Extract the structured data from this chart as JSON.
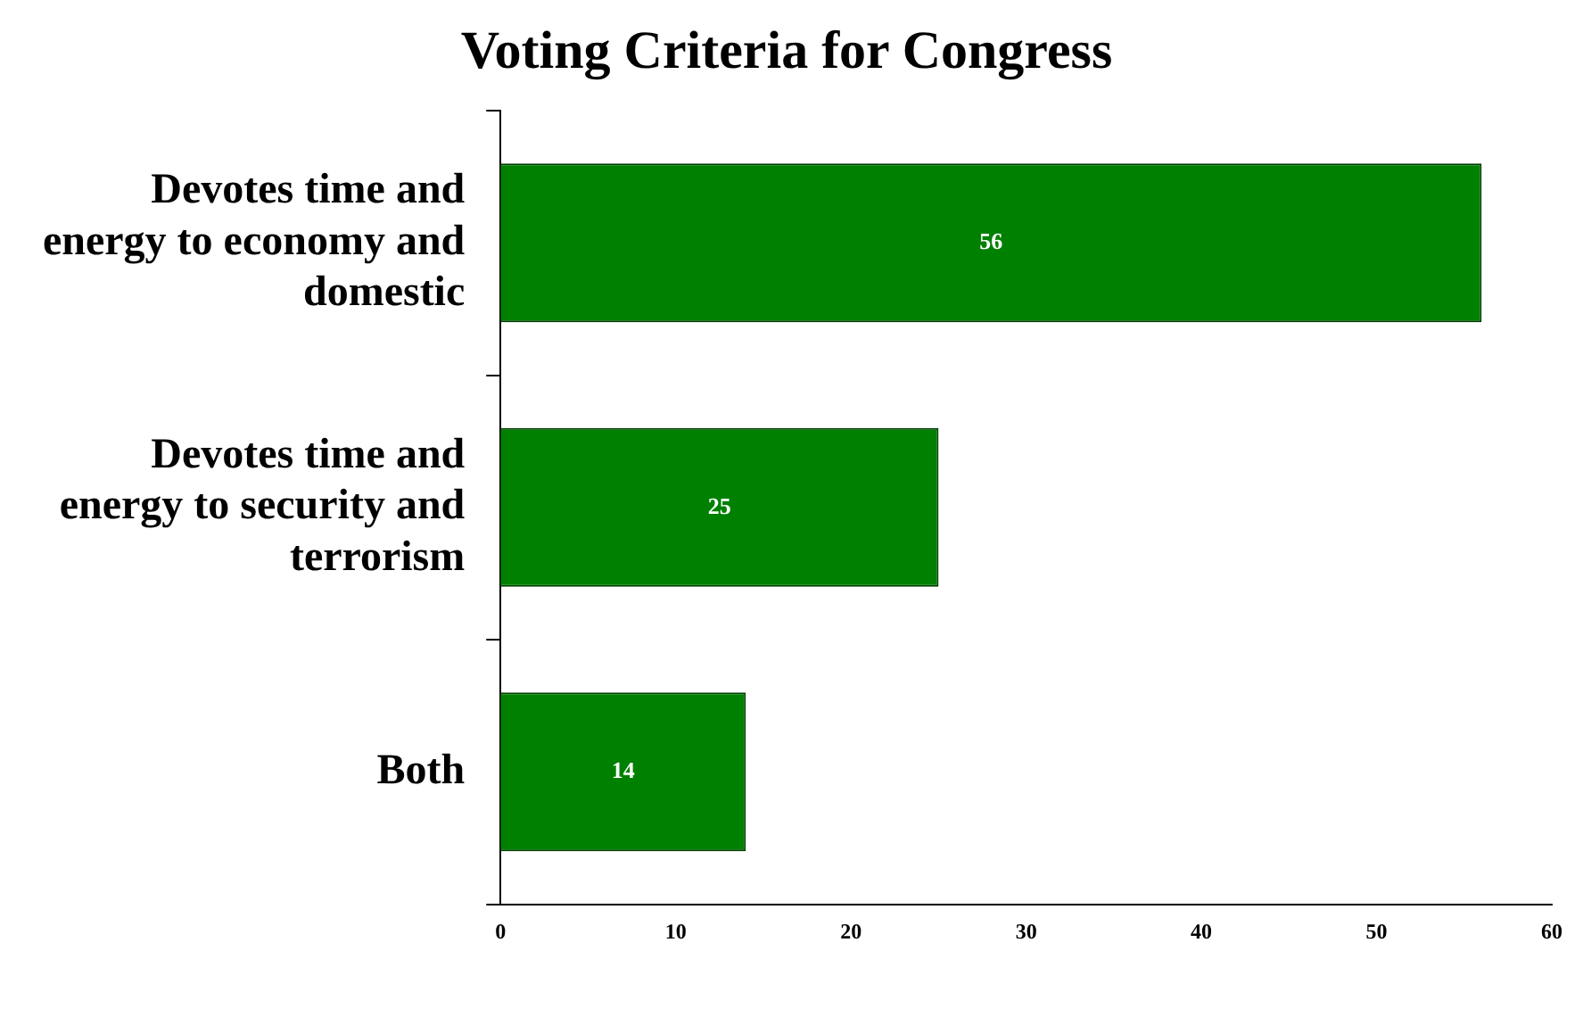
{
  "chart_data": {
    "type": "bar",
    "orientation": "horizontal",
    "title": "Voting Criteria for Congress",
    "categories": [
      "Devotes time and energy to economy and domestic",
      "Devotes time and energy to security and terrorism",
      "Both"
    ],
    "values": [
      56,
      25,
      14
    ],
    "color": "#008000",
    "xlim": [
      0,
      60
    ],
    "xticks": [
      0,
      10,
      20,
      30,
      40,
      50,
      60
    ],
    "grid": false,
    "legend": false,
    "data_labels": true
  }
}
